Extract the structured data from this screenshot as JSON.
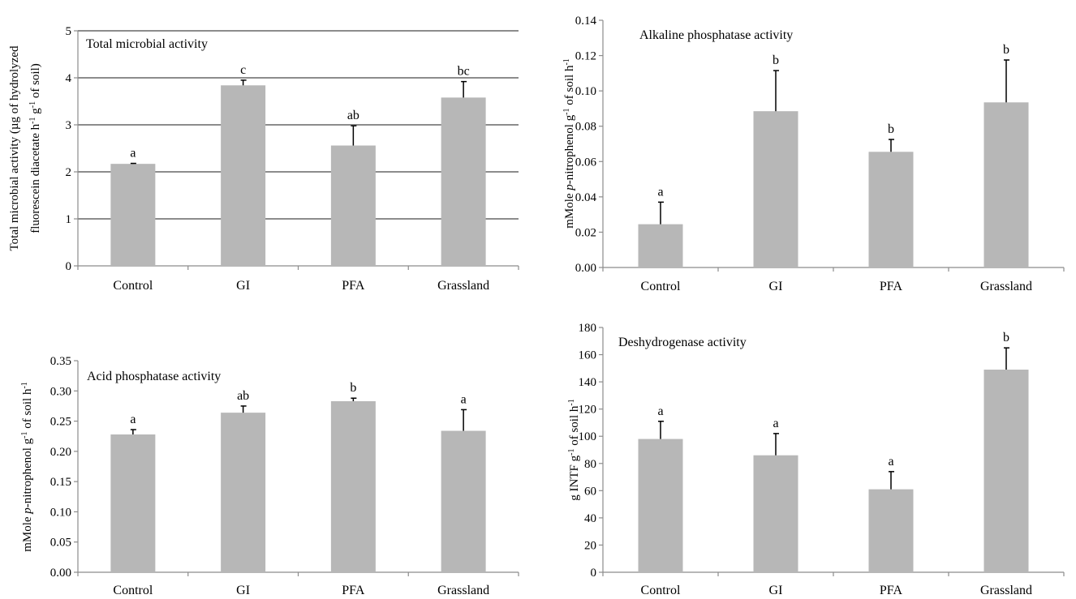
{
  "chart_data": [
    {
      "type": "bar",
      "title": "Total microbial activity",
      "ylabel_lines": [
        "Total microbial activity (µg of hydrolyzed",
        "fluorescein diacetate h^-1 g^-1 of soil)"
      ],
      "categories": [
        "Control",
        "GI",
        "PFA",
        "Grassland"
      ],
      "values": [
        2.17,
        3.84,
        2.56,
        3.58
      ],
      "errors": [
        0.01,
        0.11,
        0.42,
        0.34
      ],
      "significance": [
        "a",
        "c",
        "ab",
        "bc"
      ],
      "ylim": [
        0,
        5
      ],
      "yticks": [
        "0",
        "1",
        "2",
        "3",
        "4",
        "5"
      ],
      "gridlines": true,
      "bar_color": "#b7b7b7"
    },
    {
      "type": "bar",
      "title": "Alkaline phosphatase activity",
      "ylabel_lines": [
        "mMole p-nitrophenol g^-1 of soil h^-1"
      ],
      "categories": [
        "Control",
        "GI",
        "PFA",
        "Grassland"
      ],
      "values": [
        0.0245,
        0.0885,
        0.0655,
        0.0935
      ],
      "errors": [
        0.0125,
        0.023,
        0.007,
        0.024
      ],
      "significance": [
        "a",
        "b",
        "b",
        "b"
      ],
      "ylim": [
        0,
        0.14
      ],
      "yticks": [
        "0.00",
        "0.02",
        "0.04",
        "0.06",
        "0.08",
        "0.10",
        "0.12",
        "0.14"
      ],
      "gridlines": false,
      "bar_color": "#b7b7b7"
    },
    {
      "type": "bar",
      "title": "Acid phosphatase activity",
      "ylabel_lines": [
        "mMole p-nitrophenol g^-1 of soil h^-1"
      ],
      "categories": [
        "Control",
        "GI",
        "PFA",
        "Grassland"
      ],
      "values": [
        0.228,
        0.264,
        0.283,
        0.234
      ],
      "errors": [
        0.008,
        0.011,
        0.005,
        0.035
      ],
      "significance": [
        "a",
        "ab",
        "b",
        "a"
      ],
      "ylim": [
        0,
        0.35
      ],
      "yticks": [
        "0.00",
        "0.05",
        "0.10",
        "0.15",
        "0.20",
        "0.25",
        "0.30",
        "0.35"
      ],
      "gridlines": false,
      "bar_color": "#b7b7b7"
    },
    {
      "type": "bar",
      "title": "Deshydrogenase activity",
      "ylabel_lines": [
        "g INTF g^-1 of soil h^-1"
      ],
      "categories": [
        "Control",
        "GI",
        "PFA",
        "Grassland"
      ],
      "values": [
        98,
        86,
        61,
        149
      ],
      "errors": [
        13,
        16,
        13,
        16
      ],
      "significance": [
        "a",
        "a",
        "a",
        "b"
      ],
      "ylim": [
        0,
        180
      ],
      "yticks": [
        "0",
        "20",
        "40",
        "60",
        "80",
        "100",
        "120",
        "140",
        "160",
        "180"
      ],
      "gridlines": false,
      "bar_color": "#b7b7b7"
    }
  ]
}
